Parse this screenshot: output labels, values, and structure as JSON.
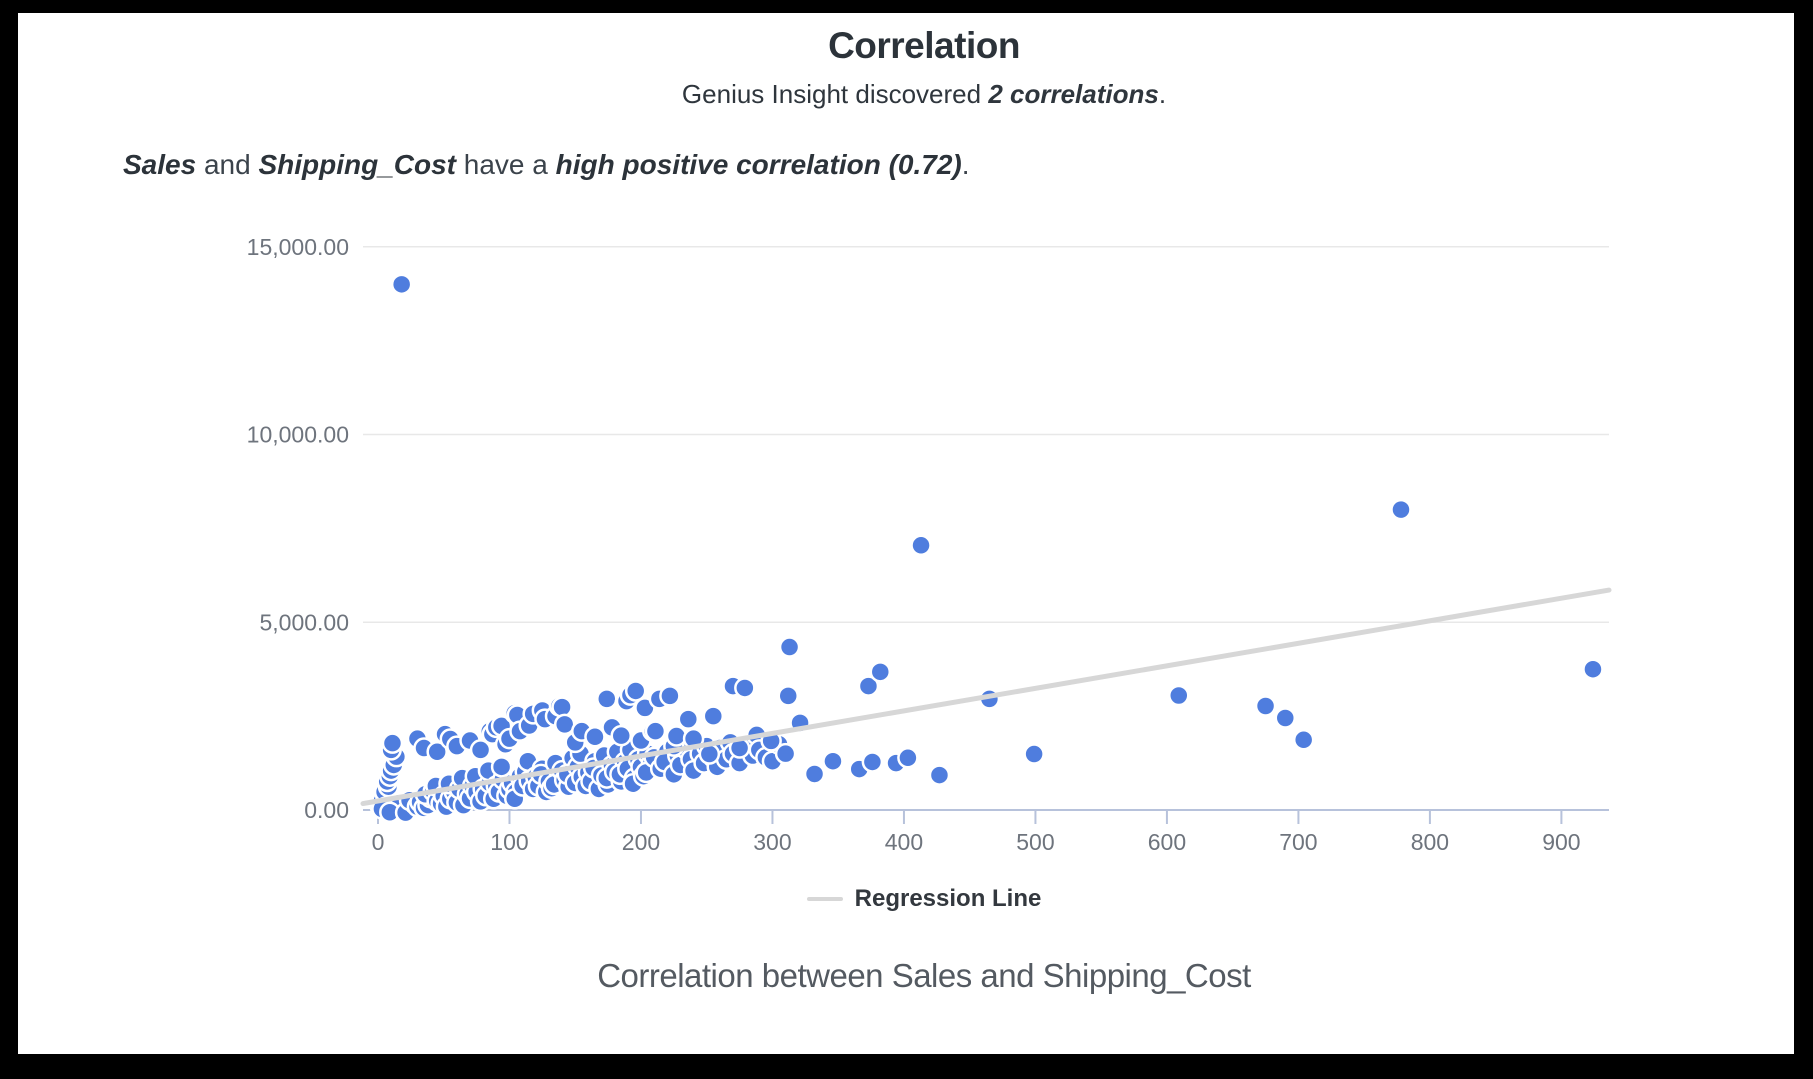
{
  "page": {
    "title": "Correlation",
    "subtitle_prefix": "Genius Insight discovered ",
    "subtitle_bold": "2 correlations",
    "subtitle_suffix": ".",
    "insight": {
      "var1": "Sales",
      "joiner": " and ",
      "var2": "Shipping_Cost",
      "middle": " have a ",
      "emphasis": "high positive correlation (0.72)",
      "suffix": "."
    },
    "legend_label": "Regression Line",
    "caption": "Correlation between Sales and Shipping_Cost"
  },
  "colors": {
    "frame": "#000000",
    "page_bg": "#ffffff",
    "title_text": "#2c333a",
    "insight_text": "#3b434b",
    "axis_label": "#6e747d",
    "axis_line": "#b7c2db",
    "gridline": "#e8e8e8",
    "dot": "#4f7dde",
    "dot_border": "#ffffff",
    "regression": "#d7d7d7",
    "legend_text": "#33383e",
    "caption_text": "#545a61"
  },
  "chart_data": {
    "type": "scatter",
    "title": "Correlation between Sales and Shipping_Cost",
    "variables": [
      "Sales",
      "Shipping_Cost"
    ],
    "correlation": 0.72,
    "xlabel": "",
    "ylabel": "",
    "xlim": [
      -11.4,
      936.2
    ],
    "ylim": [
      0,
      15000
    ],
    "x_ticks": [
      0,
      100,
      200,
      300,
      400,
      500,
      600,
      700,
      800,
      900
    ],
    "y_ticks": [
      {
        "value": 0,
        "label": "0.00"
      },
      {
        "value": 5000,
        "label": "5,000.00"
      },
      {
        "value": 10000,
        "label": "10,000.00"
      },
      {
        "value": 15000,
        "label": "15,000.00"
      }
    ],
    "grid": "horizontal-only",
    "legend": {
      "label": "Regression Line",
      "position": "bottom"
    },
    "regression_line": {
      "slope": 6.0,
      "intercept": 240
    },
    "points": [
      [
        2,
        60
      ],
      [
        4,
        140
      ],
      [
        3,
        240
      ],
      [
        6,
        350
      ],
      [
        5,
        480
      ],
      [
        8,
        620
      ],
      [
        7,
        760
      ],
      [
        9,
        900
      ],
      [
        10,
        1050
      ],
      [
        12,
        1200
      ],
      [
        6,
        80
      ],
      [
        14,
        1420
      ],
      [
        10,
        1600
      ],
      [
        3,
        30
      ],
      [
        16,
        180
      ],
      [
        18,
        90
      ],
      [
        20,
        40
      ],
      [
        22,
        130
      ],
      [
        15,
        60
      ],
      [
        25,
        75
      ],
      [
        9,
        -60
      ],
      [
        21,
        -70
      ],
      [
        28,
        160
      ],
      [
        24,
        260
      ],
      [
        30,
        90
      ],
      [
        32,
        210
      ],
      [
        35,
        55
      ],
      [
        38,
        130
      ],
      [
        40,
        330
      ],
      [
        36,
        420
      ],
      [
        42,
        500
      ],
      [
        45,
        240
      ],
      [
        48,
        170
      ],
      [
        44,
        640
      ],
      [
        50,
        380
      ],
      [
        52,
        90
      ],
      [
        55,
        300
      ],
      [
        58,
        480
      ],
      [
        54,
        700
      ],
      [
        60,
        200
      ],
      [
        62,
        560
      ],
      [
        65,
        130
      ],
      [
        68,
        420
      ],
      [
        64,
        850
      ],
      [
        70,
        310
      ],
      [
        72,
        640
      ],
      [
        75,
        480
      ],
      [
        78,
        230
      ],
      [
        74,
        900
      ],
      [
        80,
        560
      ],
      [
        82,
        380
      ],
      [
        85,
        720
      ],
      [
        88,
        300
      ],
      [
        84,
        1050
      ],
      [
        90,
        640
      ],
      [
        92,
        480
      ],
      [
        95,
        820
      ],
      [
        98,
        380
      ],
      [
        94,
        1150
      ],
      [
        100,
        560
      ],
      [
        102,
        720
      ],
      [
        105,
        480
      ],
      [
        108,
        900
      ],
      [
        104,
        300
      ],
      [
        110,
        640
      ],
      [
        112,
        1020
      ],
      [
        115,
        780
      ],
      [
        118,
        560
      ],
      [
        114,
        1300
      ],
      [
        120,
        880
      ],
      [
        122,
        640
      ],
      [
        125,
        1100
      ],
      [
        128,
        480
      ],
      [
        124,
        950
      ],
      [
        130,
        760
      ],
      [
        132,
        580
      ],
      [
        135,
        1250
      ],
      [
        138,
        900
      ],
      [
        134,
        680
      ],
      [
        140,
        1050
      ],
      [
        142,
        800
      ],
      [
        145,
        620
      ],
      [
        148,
        1380
      ],
      [
        144,
        950
      ],
      [
        150,
        720
      ],
      [
        152,
        1150
      ],
      [
        155,
        880
      ],
      [
        158,
        640
      ],
      [
        154,
        1500
      ],
      [
        160,
        1000
      ],
      [
        162,
        760
      ],
      [
        165,
        1300
      ],
      [
        168,
        560
      ],
      [
        164,
        1120
      ],
      [
        170,
        920
      ],
      [
        172,
        1450
      ],
      [
        175,
        680
      ],
      [
        178,
        1180
      ],
      [
        174,
        850
      ],
      [
        180,
        1020
      ],
      [
        182,
        1550
      ],
      [
        185,
        760
      ],
      [
        188,
        1280
      ],
      [
        184,
        950
      ],
      [
        190,
        1100
      ],
      [
        192,
        1600
      ],
      [
        195,
        850
      ],
      [
        198,
        1350
      ],
      [
        194,
        700
      ],
      [
        200,
        1150
      ],
      [
        202,
        900
      ],
      [
        205,
        1500
      ],
      [
        208,
        1250
      ],
      [
        204,
        1000
      ],
      [
        210,
        1400
      ],
      [
        215,
        1100
      ],
      [
        220,
        1550
      ],
      [
        218,
        1280
      ],
      [
        225,
        950
      ],
      [
        228,
        1450
      ],
      [
        230,
        1200
      ],
      [
        235,
        1600
      ],
      [
        238,
        1350
      ],
      [
        240,
        1050
      ],
      [
        245,
        1500
      ],
      [
        248,
        1250
      ],
      [
        250,
        1700
      ],
      [
        255,
        1400
      ],
      [
        258,
        1150
      ],
      [
        260,
        1650
      ],
      [
        265,
        1350
      ],
      [
        268,
        1800
      ],
      [
        270,
        1500
      ],
      [
        275,
        1250
      ],
      [
        280,
        1700
      ],
      [
        285,
        1450
      ],
      [
        288,
        2000
      ],
      [
        290,
        1600
      ],
      [
        295,
        1400
      ],
      [
        300,
        1300
      ],
      [
        305,
        1750
      ],
      [
        310,
        1500
      ],
      [
        11,
        1780
      ],
      [
        30,
        1900
      ],
      [
        35,
        1650
      ],
      [
        45,
        1550
      ],
      [
        51,
        2020
      ],
      [
        55,
        1890
      ],
      [
        60,
        1700
      ],
      [
        70,
        1850
      ],
      [
        78,
        1600
      ],
      [
        85,
        2100
      ],
      [
        87,
        2020
      ],
      [
        90,
        2200
      ],
      [
        94,
        2240
      ],
      [
        97,
        1750
      ],
      [
        100,
        1900
      ],
      [
        104,
        2580
      ],
      [
        106,
        2530
      ],
      [
        108,
        2100
      ],
      [
        115,
        2250
      ],
      [
        118,
        2560
      ],
      [
        125,
        2650
      ],
      [
        127,
        2420
      ],
      [
        135,
        2500
      ],
      [
        138,
        2770
      ],
      [
        140,
        2740
      ],
      [
        142,
        2280
      ],
      [
        150,
        1800
      ],
      [
        155,
        2100
      ],
      [
        165,
        1950
      ],
      [
        174,
        2960
      ],
      [
        178,
        2200
      ],
      [
        185,
        1980
      ],
      [
        188,
        2850
      ],
      [
        189,
        2900
      ],
      [
        192,
        3060
      ],
      [
        196,
        3170
      ],
      [
        200,
        1850
      ],
      [
        203,
        2720
      ],
      [
        209,
        2100
      ],
      [
        211,
        2100
      ],
      [
        214,
        2960
      ],
      [
        222,
        3040
      ],
      [
        225,
        1700
      ],
      [
        227,
        1970
      ],
      [
        235,
        2450
      ],
      [
        236,
        2420
      ],
      [
        240,
        1900
      ],
      [
        252,
        1490
      ],
      [
        255,
        2500
      ],
      [
        270,
        3300
      ],
      [
        275,
        1650
      ],
      [
        279,
        3250
      ],
      [
        299,
        1840
      ],
      [
        312,
        3040
      ],
      [
        321,
        2320
      ],
      [
        313,
        4340
      ],
      [
        332,
        960
      ],
      [
        346,
        1300
      ],
      [
        366,
        1090
      ],
      [
        373,
        3300
      ],
      [
        382,
        3680
      ],
      [
        376,
        1280
      ],
      [
        394,
        1250
      ],
      [
        403,
        1390
      ],
      [
        427,
        930
      ],
      [
        465,
        2960
      ],
      [
        499,
        1490
      ],
      [
        609,
        3050
      ],
      [
        675,
        2770
      ],
      [
        690,
        2450
      ],
      [
        704,
        1870
      ],
      [
        413,
        7050
      ],
      [
        778,
        8000
      ],
      [
        924,
        3750
      ],
      [
        18,
        14000
      ]
    ]
  }
}
